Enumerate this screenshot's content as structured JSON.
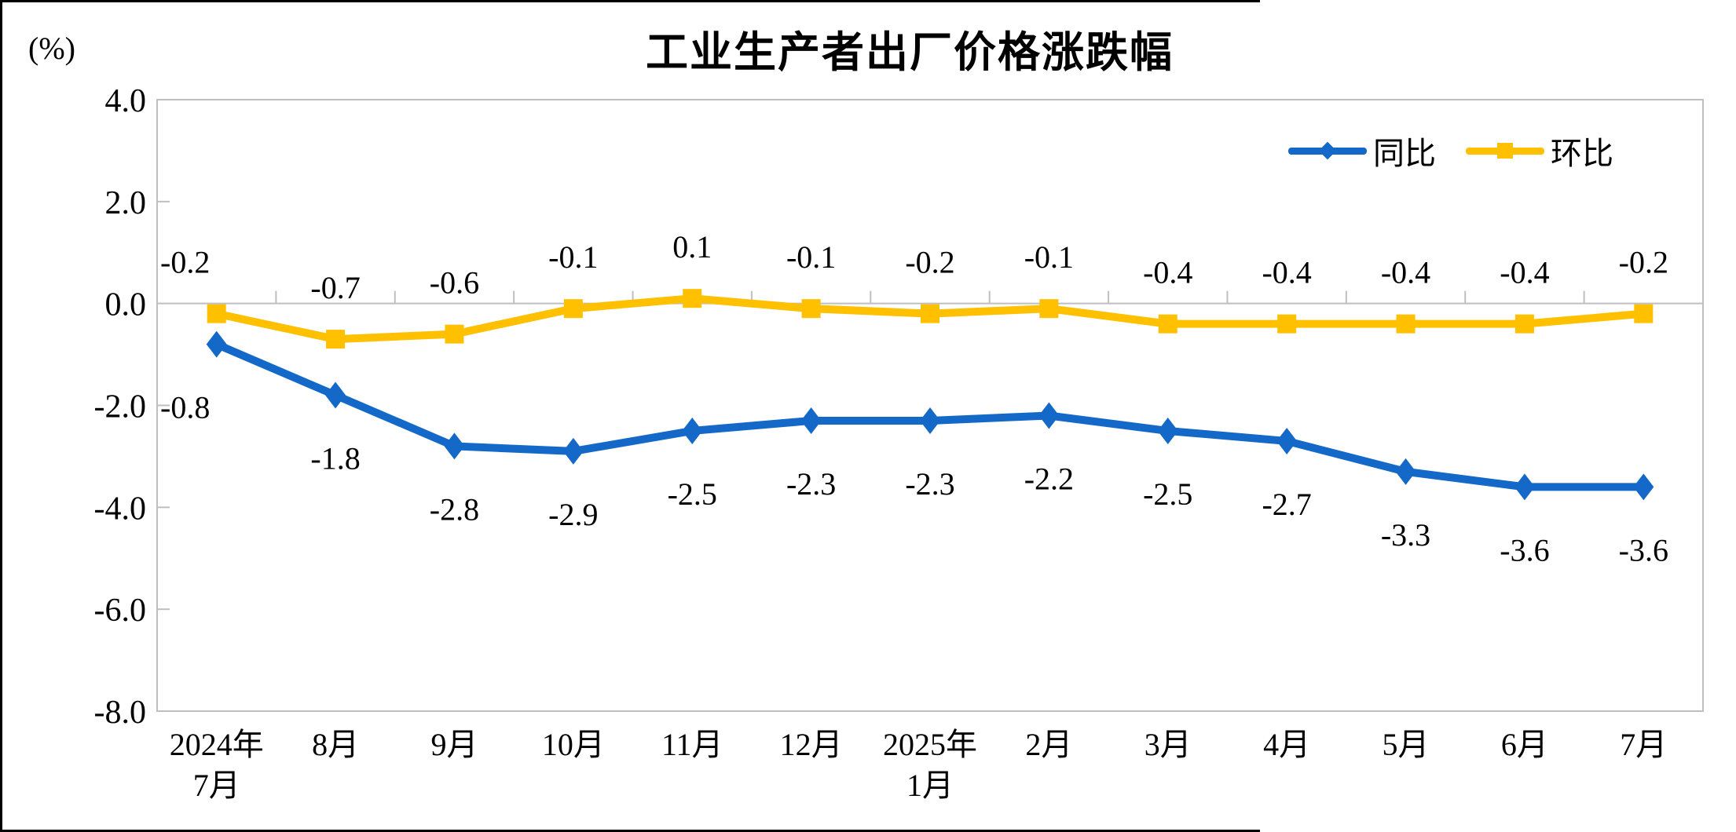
{
  "window": {
    "background": "#FFFFFF",
    "edge_color": "#000000"
  },
  "chart_data": {
    "type": "line",
    "title": "工业生产者出厂价格涨跌幅",
    "unit_label": "(%)",
    "categories": [
      "2024年7月",
      "8月",
      "9月",
      "10月",
      "11月",
      "12月",
      "2025年1月",
      "2月",
      "3月",
      "4月",
      "5月",
      "6月",
      "7月"
    ],
    "x_tick_labels": [
      [
        "2024年",
        "7月"
      ],
      [
        "8月"
      ],
      [
        "9月"
      ],
      [
        "10月"
      ],
      [
        "11月"
      ],
      [
        "12月"
      ],
      [
        "2025年",
        "1月"
      ],
      [
        "2月"
      ],
      [
        "3月"
      ],
      [
        "4月"
      ],
      [
        "5月"
      ],
      [
        "6月"
      ],
      [
        "7月"
      ]
    ],
    "y_ticks": [
      4.0,
      2.0,
      0.0,
      -2.0,
      -4.0,
      -6.0,
      -8.0
    ],
    "y_tick_labels": [
      "4.0",
      "2.0",
      "0.0",
      "-2.0",
      "-4.0",
      "-6.0",
      "-8.0"
    ],
    "ylim": [
      -8.0,
      4.0
    ],
    "grid": false,
    "legend_position": "top-right",
    "axis_color": "#BFBFBF",
    "label_color": "#000000",
    "series": [
      {
        "name": "同比",
        "marker": "diamond",
        "color": "#1469C8",
        "values": [
          -0.8,
          -1.8,
          -2.8,
          -2.9,
          -2.5,
          -2.3,
          -2.3,
          -2.2,
          -2.5,
          -2.7,
          -3.3,
          -3.6,
          -3.6
        ],
        "labels": [
          "-0.8",
          "-1.8",
          "-2.8",
          "-2.9",
          "-2.5",
          "-2.3",
          "-2.3",
          "-2.2",
          "-2.5",
          "-2.7",
          "-3.3",
          "-3.6",
          "-3.6"
        ]
      },
      {
        "name": "环比",
        "marker": "square",
        "color": "#FFC000",
        "values": [
          -0.2,
          -0.7,
          -0.6,
          -0.1,
          0.1,
          -0.1,
          -0.2,
          -0.1,
          -0.4,
          -0.4,
          -0.4,
          -0.4,
          -0.2
        ],
        "labels": [
          "-0.2",
          "-0.7",
          "-0.6",
          "-0.1",
          "0.1",
          "-0.1",
          "-0.2",
          "-0.1",
          "-0.4",
          "-0.4",
          "-0.4",
          "-0.4",
          "-0.2"
        ]
      }
    ]
  }
}
